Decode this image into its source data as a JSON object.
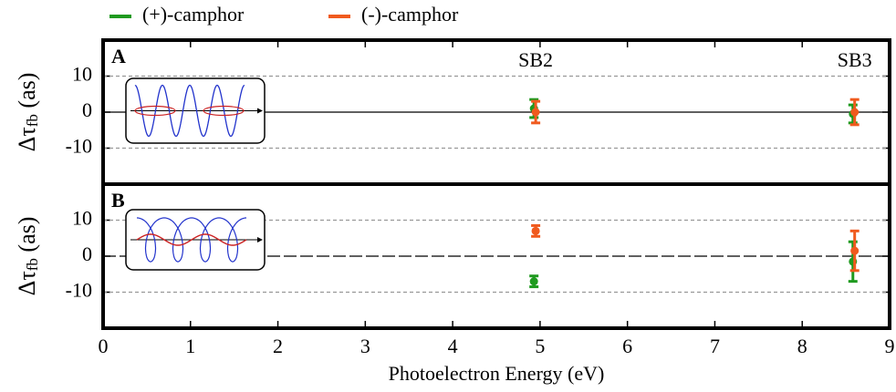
{
  "chart_data": [
    {
      "type": "errorbar",
      "panel_label": "A",
      "ylabel": [
        "Δτ",
        "fb",
        " (as)"
      ],
      "annotations": [
        {
          "text": "SB2",
          "x": 4.95
        },
        {
          "text": "SB3",
          "x": 8.6
        }
      ],
      "xlim": [
        0,
        9
      ],
      "ylim": [
        -20,
        20
      ],
      "yticks": [
        -10,
        0,
        10
      ],
      "grid": true,
      "zero_line": "solid",
      "series": [
        {
          "name": "(+)-camphor",
          "color": "#1f9a1f",
          "x": [
            4.93,
            8.58
          ],
          "values": [
            1,
            -0.5
          ],
          "errors": [
            2.5,
            2.5
          ]
        },
        {
          "name": "(-)-camphor",
          "color": "#f05a1e",
          "x": [
            4.95,
            8.6
          ],
          "values": [
            0,
            0
          ],
          "errors": [
            3,
            3.5
          ]
        }
      ]
    },
    {
      "type": "errorbar",
      "panel_label": "B",
      "ylabel": [
        "Δτ",
        "fb",
        " (as)"
      ],
      "xlabel": "Photoelectron Energy (eV)",
      "xlim": [
        0,
        9
      ],
      "xticks": [
        0,
        1,
        2,
        3,
        4,
        5,
        6,
        7,
        8,
        9
      ],
      "ylim": [
        -20,
        20
      ],
      "yticks": [
        -10,
        0,
        10
      ],
      "grid": true,
      "zero_line": "dashed",
      "series": [
        {
          "color": "#1f9a1f",
          "x": [
            4.93,
            8.58
          ],
          "values": [
            -7,
            -1.5
          ],
          "errors": [
            1.5,
            5.5
          ]
        },
        {
          "color": "#f05a1e",
          "x": [
            4.95,
            8.6
          ],
          "values": [
            7,
            1.5
          ],
          "errors": [
            1.5,
            5.5
          ]
        }
      ]
    }
  ]
}
